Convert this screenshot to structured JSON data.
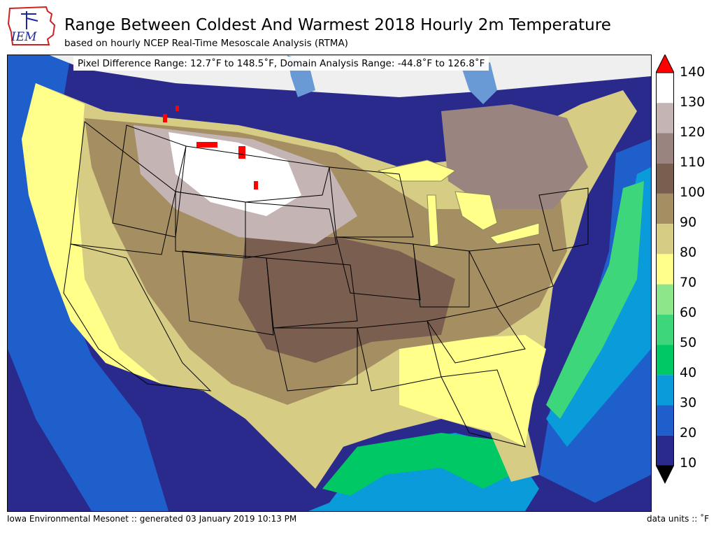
{
  "header": {
    "logo_text": "IEM",
    "title": "Range Between Coldest And Warmest 2018 Hourly 2m Temperature",
    "subtitle": "based on hourly NCEP Real-Time Mesoscale Analysis (RTMA)"
  },
  "map": {
    "range_text": "Pixel Difference Range: 12.7˚F to 148.5˚F, Domain Analysis Range: -44.8˚F to 126.8˚F",
    "region": "Contiguous United States",
    "grid_min_f": 12.7,
    "grid_max_f": 148.5,
    "domain_min_f": -44.8,
    "domain_max_f": 126.8
  },
  "legend": {
    "ticks": [
      "10",
      "20",
      "30",
      "40",
      "50",
      "60",
      "70",
      "80",
      "90",
      "100",
      "110",
      "120",
      "130",
      "140"
    ],
    "bins": [
      {
        "from": 10,
        "to": 20,
        "color": "#2a2a8c"
      },
      {
        "from": 20,
        "to": 30,
        "color": "#1f5fcc"
      },
      {
        "from": 30,
        "to": 40,
        "color": "#0a9bdb"
      },
      {
        "from": 40,
        "to": 50,
        "color": "#00c864"
      },
      {
        "from": 50,
        "to": 60,
        "color": "#3dd67a"
      },
      {
        "from": 60,
        "to": 70,
        "color": "#8ee68a"
      },
      {
        "from": 70,
        "to": 80,
        "color": "#ffff8a"
      },
      {
        "from": 80,
        "to": 90,
        "color": "#d6cc84"
      },
      {
        "from": 90,
        "to": 100,
        "color": "#a48e62"
      },
      {
        "from": 100,
        "to": 110,
        "color": "#7a5e50"
      },
      {
        "from": 110,
        "to": 120,
        "color": "#9a8480"
      },
      {
        "from": 120,
        "to": 130,
        "color": "#c4b4b4"
      },
      {
        "from": 130,
        "to": 140,
        "color": "#ffffff"
      }
    ],
    "over_color": "#ff0000",
    "under_color": "#000000"
  },
  "footer": {
    "left": "Iowa Environmental Mesonet :: generated 03 January 2019 10:13 PM",
    "right": "data units :: ˚F"
  }
}
